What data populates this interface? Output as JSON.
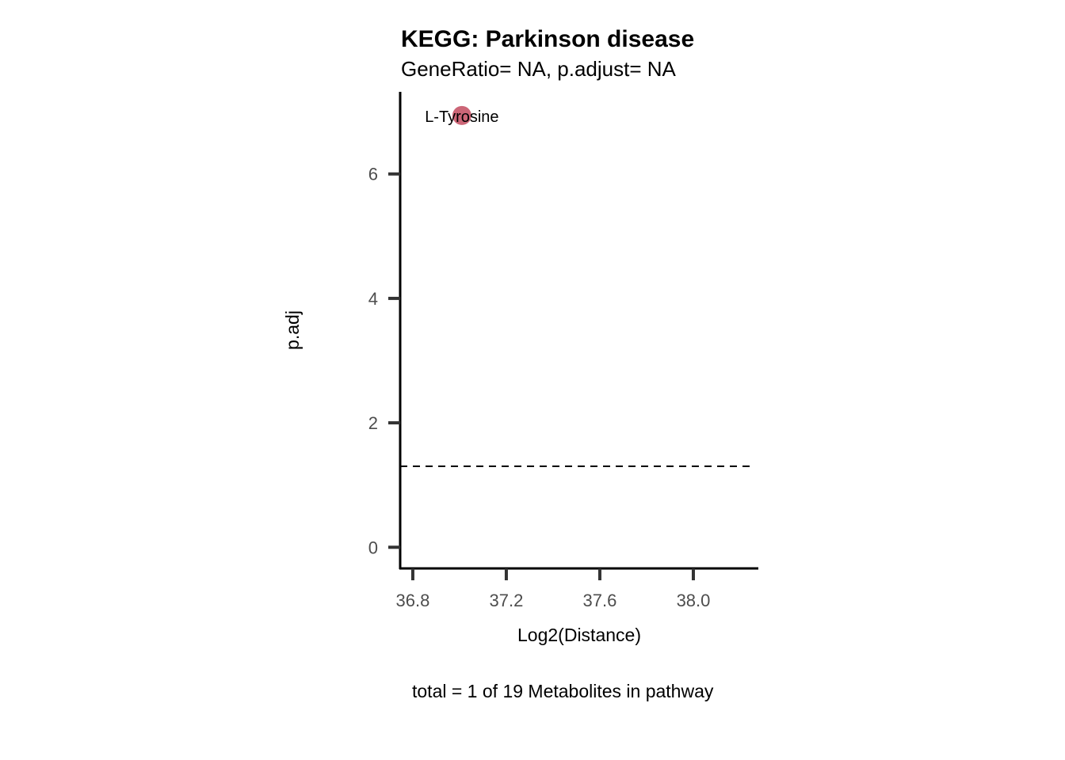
{
  "chart_data": {
    "type": "scatter",
    "title": "KEGG: Parkinson disease",
    "subtitle": "GeneRatio= NA, p.adjust= NA",
    "xlabel": "Log2(Distance)",
    "ylabel": "p.adj",
    "caption": "total = 1 of 19 Metabolites in pathway",
    "xlim": [
      36.746,
      38.278
    ],
    "ylim": [
      -0.34,
      7.32
    ],
    "xticks": [
      36.8,
      37.2,
      37.6,
      38.0
    ],
    "xtick_labels": [
      "36.8",
      "37.2",
      "37.6",
      "38.0"
    ],
    "yticks": [
      0,
      2,
      4,
      6
    ],
    "ytick_labels": [
      "0",
      "2",
      "4",
      "6"
    ],
    "grid": false,
    "points": [
      {
        "label": "L-Tyrosine",
        "x": 37.01,
        "y": 6.94
      }
    ],
    "threshold_line": {
      "y": 1.301,
      "style": "dashed"
    },
    "point_color": "#CC6677"
  }
}
